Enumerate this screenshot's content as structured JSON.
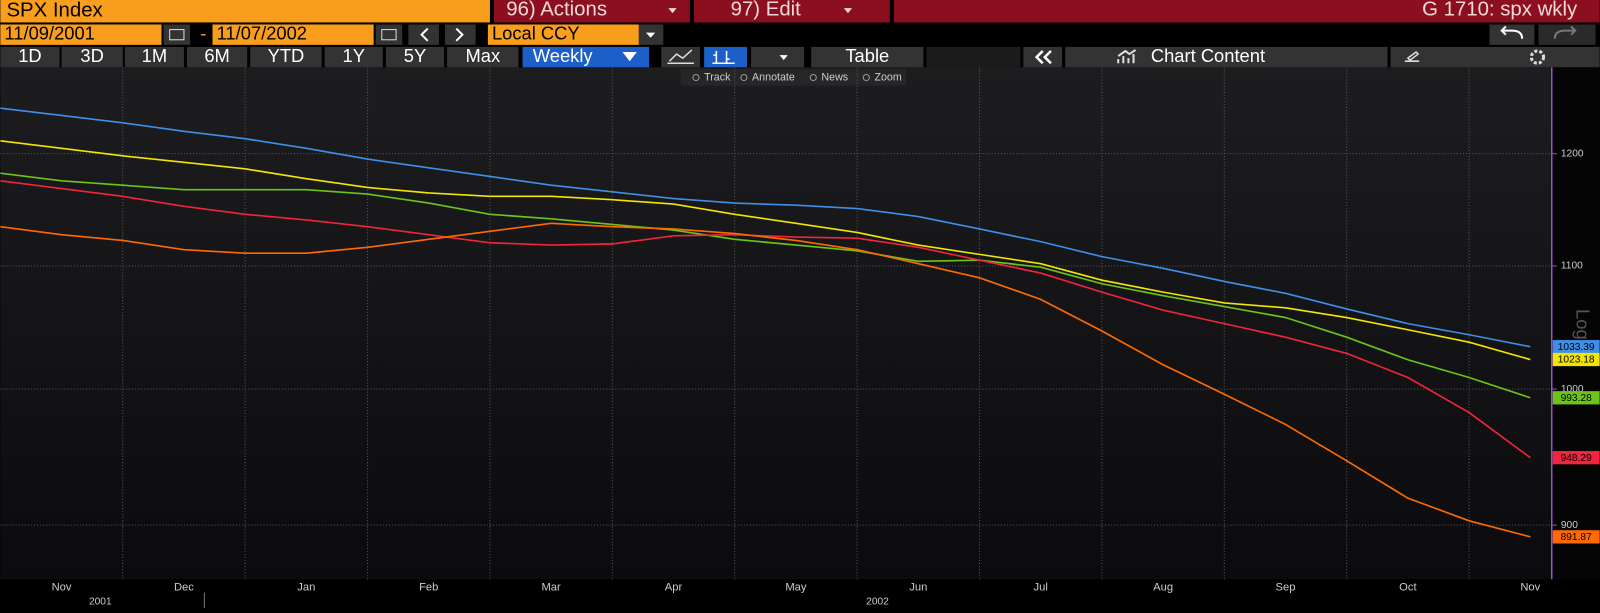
{
  "header": {
    "security": "SPX Index",
    "actions": "96) Actions",
    "edit": "97) Edit",
    "page": "G 1710: spx wkly"
  },
  "date_range": {
    "start": "11/09/2001",
    "separator": "-",
    "end": "11/07/2002",
    "currency": "Local CCY"
  },
  "periods": [
    "1D",
    "3D",
    "1M",
    "6M",
    "YTD",
    "1Y",
    "5Y",
    "Max"
  ],
  "frequency": "Weekly",
  "table_button": "Table",
  "chart_content": "Chart Content",
  "tools": [
    "Track",
    "Annotate",
    "News",
    "Zoom"
  ],
  "chart_data": {
    "type": "line",
    "log_scale": true,
    "grid": true,
    "axis_note": "Log",
    "categories": [
      null,
      "Nov",
      null,
      "Dec",
      null,
      "Jan",
      null,
      "Feb",
      null,
      "Mar",
      null,
      "Apr",
      null,
      "May",
      null,
      "Jun",
      null,
      "Jul",
      null,
      "Aug",
      null,
      "Sep",
      null,
      "Oct",
      null,
      "Nov"
    ],
    "year_labels": [
      "2001",
      "2002"
    ],
    "ylim": [
      863,
      1283
    ],
    "yticks": [
      900,
      1000,
      1100,
      1200
    ],
    "series": [
      {
        "color": "#3d8fe8",
        "values": [
          1243,
          1236,
          1229,
          1221,
          1214,
          1205,
          1195,
          1187,
          1179,
          1171,
          1165,
          1159,
          1155,
          1153,
          1150,
          1143,
          1132,
          1121,
          1108,
          1098,
          1087,
          1077,
          1064,
          1052,
          1043,
          1033.39
        ]
      },
      {
        "color": "#f2e600",
        "values": [
          1212,
          1205,
          1198,
          1192,
          1186,
          1177,
          1169,
          1164,
          1161,
          1161,
          1158,
          1154,
          1145,
          1137,
          1129,
          1118,
          1110,
          1102,
          1088,
          1078,
          1069,
          1065,
          1057,
          1047,
          1037,
          1023.18
        ]
      },
      {
        "color": "#6cc417",
        "values": [
          1182,
          1175,
          1171,
          1167,
          1167,
          1167,
          1163,
          1155,
          1145,
          1141,
          1136,
          1131,
          1123,
          1118,
          1113,
          1104,
          1105,
          1099,
          1085,
          1075,
          1066,
          1057,
          1041,
          1023,
          1009,
          993.28
        ]
      },
      {
        "color": "#f0243c",
        "values": [
          1175,
          1168,
          1161,
          1152,
          1145,
          1140,
          1134,
          1127,
          1120,
          1118,
          1119,
          1126,
          1127,
          1125,
          1124,
          1116,
          1105,
          1094,
          1078,
          1063,
          1052,
          1041,
          1028,
          1009,
          982,
          948.29
        ]
      },
      {
        "color": "#ff6a00",
        "values": [
          1134,
          1127,
          1122,
          1114,
          1111,
          1111,
          1116,
          1123,
          1130,
          1137,
          1134,
          1132,
          1128,
          1122,
          1114,
          1102,
          1090,
          1072,
          1046,
          1019,
          996,
          973,
          946,
          919,
          903,
          891.87
        ]
      }
    ]
  }
}
